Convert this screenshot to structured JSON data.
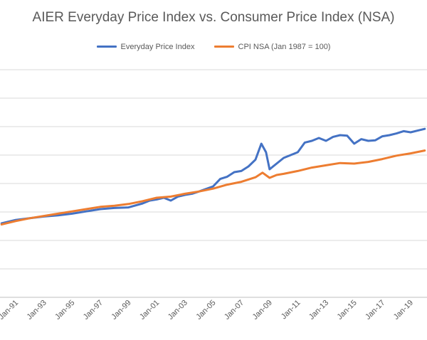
{
  "chart_data": {
    "type": "line",
    "title": "AIER Everyday Price Index vs. Consumer Price Index (NSA)",
    "xlabel": "",
    "ylabel": "",
    "x_tick_labels": [
      "Jan-91",
      "Jan-93",
      "Jan-95",
      "Jan-97",
      "Jan-99",
      "Jan-01",
      "Jan-03",
      "Jan-05",
      "Jan-07",
      "Jan-09",
      "Jan-11",
      "Jan-13",
      "Jan-15",
      "Jan-17",
      "Jan-19"
    ],
    "x_range": [
      "1990-01",
      "2020-01"
    ],
    "y_range": [
      0,
      400
    ],
    "grid": true,
    "legend_position": "top",
    "series": [
      {
        "name": "Everyday Price Index",
        "color": "#4472C4",
        "points": [
          [
            "1990-01",
            130
          ],
          [
            "1990-07",
            133
          ],
          [
            "1991-01",
            136
          ],
          [
            "1992-01",
            139
          ],
          [
            "1993-01",
            142
          ],
          [
            "1994-01",
            144
          ],
          [
            "1995-01",
            147
          ],
          [
            "1996-01",
            151
          ],
          [
            "1997-01",
            155
          ],
          [
            "1998-01",
            157
          ],
          [
            "1999-01",
            158
          ],
          [
            "2000-01",
            165
          ],
          [
            "2000-07",
            170
          ],
          [
            "2001-01",
            172
          ],
          [
            "2001-07",
            175
          ],
          [
            "2002-01",
            170
          ],
          [
            "2002-07",
            177
          ],
          [
            "2003-01",
            180
          ],
          [
            "2003-07",
            182
          ],
          [
            "2004-01",
            186
          ],
          [
            "2005-01",
            195
          ],
          [
            "2005-07",
            208
          ],
          [
            "2006-01",
            212
          ],
          [
            "2006-07",
            220
          ],
          [
            "2007-01",
            222
          ],
          [
            "2007-07",
            230
          ],
          [
            "2008-01",
            242
          ],
          [
            "2008-06",
            270
          ],
          [
            "2008-10",
            255
          ],
          [
            "2009-01",
            225
          ],
          [
            "2009-07",
            235
          ],
          [
            "2010-01",
            245
          ],
          [
            "2010-07",
            250
          ],
          [
            "2011-01",
            255
          ],
          [
            "2011-07",
            272
          ],
          [
            "2012-01",
            275
          ],
          [
            "2012-07",
            280
          ],
          [
            "2013-01",
            275
          ],
          [
            "2013-07",
            282
          ],
          [
            "2014-01",
            285
          ],
          [
            "2014-07",
            284
          ],
          [
            "2015-01",
            270
          ],
          [
            "2015-07",
            278
          ],
          [
            "2016-01",
            275
          ],
          [
            "2016-07",
            276
          ],
          [
            "2017-01",
            283
          ],
          [
            "2017-07",
            285
          ],
          [
            "2018-01",
            288
          ],
          [
            "2018-07",
            292
          ],
          [
            "2019-01",
            290
          ],
          [
            "2019-07",
            293
          ],
          [
            "2020-01",
            296
          ]
        ]
      },
      {
        "name": "CPI NSA (Jan 1987 = 100)",
        "color": "#ED7D31",
        "points": [
          [
            "1990-01",
            128
          ],
          [
            "1991-01",
            134
          ],
          [
            "1992-01",
            139
          ],
          [
            "1993-01",
            143
          ],
          [
            "1994-01",
            147
          ],
          [
            "1995-01",
            151
          ],
          [
            "1996-01",
            155
          ],
          [
            "1997-01",
            159
          ],
          [
            "1998-01",
            161
          ],
          [
            "1999-01",
            164
          ],
          [
            "2000-01",
            169
          ],
          [
            "2001-01",
            175
          ],
          [
            "2002-01",
            177
          ],
          [
            "2003-01",
            182
          ],
          [
            "2004-01",
            186
          ],
          [
            "2005-01",
            191
          ],
          [
            "2006-01",
            198
          ],
          [
            "2007-01",
            203
          ],
          [
            "2008-01",
            211
          ],
          [
            "2008-07",
            219
          ],
          [
            "2009-01",
            210
          ],
          [
            "2009-07",
            215
          ],
          [
            "2010-01",
            217
          ],
          [
            "2011-01",
            222
          ],
          [
            "2012-01",
            228
          ],
          [
            "2013-01",
            232
          ],
          [
            "2014-01",
            236
          ],
          [
            "2015-01",
            235
          ],
          [
            "2016-01",
            238
          ],
          [
            "2017-01",
            243
          ],
          [
            "2018-01",
            249
          ],
          [
            "2019-01",
            253
          ],
          [
            "2020-01",
            258
          ]
        ]
      }
    ]
  }
}
